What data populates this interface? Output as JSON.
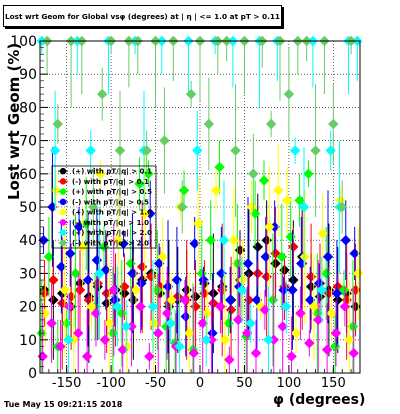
{
  "title": "Lost wrt Geom for Global vsφ (degrees) at | η | <= 1.0 at pT > 0.11",
  "footer_timestamp": "Tue May 15 09:21:15 2018",
  "chart_data": {
    "type": "scatter",
    "xlabel": "φ (degrees)",
    "ylabel": "Lost wrt Geom (%)",
    "xlim": [
      -180,
      180
    ],
    "ylim": [
      0,
      100
    ],
    "x_ticks": [
      -150,
      -100,
      -50,
      0,
      50,
      100,
      150
    ],
    "y_ticks": [
      0,
      10,
      20,
      30,
      40,
      50,
      60,
      70,
      80,
      90,
      100
    ],
    "grid": true,
    "legend_position": "upper-left",
    "series": [
      {
        "name": "(+) with pT/|q| > 0.1",
        "color": "#000000",
        "marker": "circle",
        "x": [
          -175,
          -165,
          -155,
          -145,
          -135,
          -125,
          -115,
          -105,
          -95,
          -85,
          -75,
          -65,
          -55,
          -45,
          -35,
          -25,
          -15,
          -5,
          5,
          15,
          25,
          35,
          45,
          55,
          65,
          75,
          85,
          95,
          105,
          115,
          125,
          135,
          145,
          155,
          165,
          175
        ],
        "y": [
          25,
          22,
          24,
          20,
          27,
          23,
          26,
          21,
          25,
          24,
          22,
          28,
          30,
          24,
          20,
          22,
          25,
          23,
          27,
          24,
          26,
          22,
          37,
          30,
          38,
          40,
          33,
          31,
          28,
          35,
          26,
          23,
          25,
          22,
          24,
          20
        ]
      },
      {
        "name": "(-) with pT/|q| > 0.1",
        "color": "#ff0000",
        "marker": "circle",
        "x": [
          -175,
          -165,
          -155,
          -145,
          -135,
          -125,
          -115,
          -105,
          -95,
          -85,
          -75,
          -65,
          -55,
          -45,
          -35,
          -25,
          -15,
          -5,
          5,
          15,
          25,
          35,
          45,
          55,
          65,
          75,
          85,
          95,
          105,
          115,
          125,
          135,
          145,
          155,
          165,
          175
        ],
        "y": [
          24,
          28,
          21,
          23,
          25,
          22,
          27,
          24,
          22,
          26,
          30,
          32,
          29,
          26,
          21,
          23,
          22,
          20,
          24,
          21,
          25,
          19,
          28,
          22,
          30,
          29,
          36,
          26,
          38,
          33,
          29,
          27,
          24,
          26,
          22,
          25
        ]
      },
      {
        "name": "(+) with pT/|q| > 0.5",
        "color": "#00ff00",
        "marker": "circle",
        "x": [
          -178,
          -170,
          -160,
          -150,
          -140,
          -128,
          -118,
          -108,
          -98,
          -88,
          -78,
          -68,
          -58,
          -48,
          -38,
          -28,
          -18,
          -8,
          2,
          12,
          22,
          32,
          42,
          52,
          62,
          72,
          82,
          92,
          102,
          112,
          122,
          132,
          142,
          152,
          162,
          172
        ],
        "y": [
          12,
          35,
          8,
          15,
          30,
          45,
          20,
          38,
          12,
          18,
          33,
          57,
          60,
          25,
          14,
          9,
          55,
          7,
          30,
          40,
          62,
          15,
          33,
          11,
          48,
          58,
          22,
          35,
          41,
          52,
          60,
          18,
          30,
          8,
          25,
          14
        ]
      },
      {
        "name": "(-) with pT/|q| > 0.5",
        "color": "#0000ff",
        "marker": "circle",
        "x": [
          -176,
          -166,
          -156,
          -146,
          -136,
          -126,
          -116,
          -106,
          -96,
          -86,
          -76,
          -66,
          -56,
          -46,
          -36,
          -26,
          -16,
          -6,
          4,
          14,
          24,
          34,
          44,
          54,
          64,
          74,
          84,
          94,
          104,
          114,
          124,
          134,
          144,
          154,
          164,
          174
        ],
        "y": [
          40,
          50,
          32,
          36,
          44,
          28,
          34,
          31,
          22,
          39,
          30,
          27,
          48,
          33,
          26,
          28,
          17,
          39,
          28,
          12,
          30,
          22,
          26,
          33,
          22,
          35,
          44,
          25,
          25,
          33,
          22,
          27,
          35,
          24,
          40,
          36
        ]
      },
      {
        "name": "(+) with pT/|q| > 1.0",
        "color": "#ffff00",
        "marker": "circle",
        "x": [
          -174,
          -162,
          -152,
          -142,
          -132,
          -122,
          -112,
          -102,
          -92,
          -82,
          -72,
          -62,
          -52,
          -42,
          -32,
          -22,
          -12,
          -2,
          8,
          18,
          28,
          38,
          48,
          58,
          68,
          78,
          88,
          98,
          108,
          118,
          128,
          138,
          148,
          158,
          168,
          178
        ],
        "y": [
          18,
          55,
          25,
          10,
          38,
          20,
          60,
          15,
          40,
          8,
          25,
          48,
          15,
          35,
          22,
          50,
          12,
          45,
          18,
          55,
          10,
          40,
          28,
          50,
          20,
          44,
          55,
          52,
          12,
          35,
          20,
          42,
          18,
          52,
          10,
          30
        ]
      },
      {
        "name": "(-) with pT/|q| > 1.0",
        "color": "#ff00ff",
        "marker": "circle",
        "x": [
          -177,
          -167,
          -157,
          -147,
          -137,
          -127,
          -117,
          -107,
          -97,
          -87,
          -77,
          -67,
          -57,
          -47,
          -37,
          -27,
          -17,
          -7,
          3,
          13,
          23,
          33,
          43,
          53,
          63,
          73,
          83,
          93,
          103,
          113,
          123,
          133,
          143,
          153,
          163,
          173
        ],
        "y": [
          5,
          15,
          8,
          20,
          12,
          5,
          18,
          10,
          25,
          7,
          14,
          20,
          5,
          12,
          18,
          8,
          22,
          6,
          15,
          10,
          20,
          4,
          16,
          12,
          6,
          19,
          10,
          14,
          5,
          18,
          9,
          16,
          7,
          12,
          20,
          6
        ]
      },
      {
        "name": "(+) with pT/|q| > 2.0",
        "color": "#00ffff",
        "marker": "circle",
        "x": [
          -178,
          -163,
          -148,
          -138,
          -123,
          -113,
          -103,
          -93,
          -83,
          -73,
          -63,
          -53,
          -43,
          -33,
          -23,
          -13,
          -3,
          7,
          17,
          27,
          37,
          47,
          57,
          67,
          77,
          87,
          97,
          107,
          117,
          127,
          137,
          147,
          157,
          167,
          177
        ],
        "y": [
          100,
          67,
          10,
          100,
          67,
          30,
          100,
          20,
          14,
          100,
          67,
          20,
          100,
          15,
          8,
          100,
          67,
          10,
          100,
          40,
          100,
          25,
          15,
          100,
          10,
          100,
          20,
          67,
          50,
          100,
          25,
          67,
          50,
          100,
          100
        ]
      },
      {
        "name": "(-) with pT/|q| > 2.0",
        "color": "#66cc66",
        "marker": "circle",
        "x": [
          -172,
          -160,
          -145,
          -133,
          -120,
          -110,
          -100,
          -90,
          -80,
          -70,
          -60,
          -50,
          -40,
          -30,
          -20,
          -10,
          0,
          10,
          20,
          30,
          40,
          50,
          60,
          70,
          80,
          90,
          100,
          110,
          120,
          130,
          140,
          150,
          160,
          170
        ],
        "y": [
          100,
          75,
          100,
          100,
          50,
          84,
          100,
          67,
          100,
          100,
          67,
          100,
          70,
          100,
          50,
          84,
          100,
          75,
          100,
          100,
          67,
          100,
          60,
          100,
          75,
          100,
          84,
          100,
          100,
          67,
          100,
          75,
          50,
          100
        ]
      }
    ]
  }
}
